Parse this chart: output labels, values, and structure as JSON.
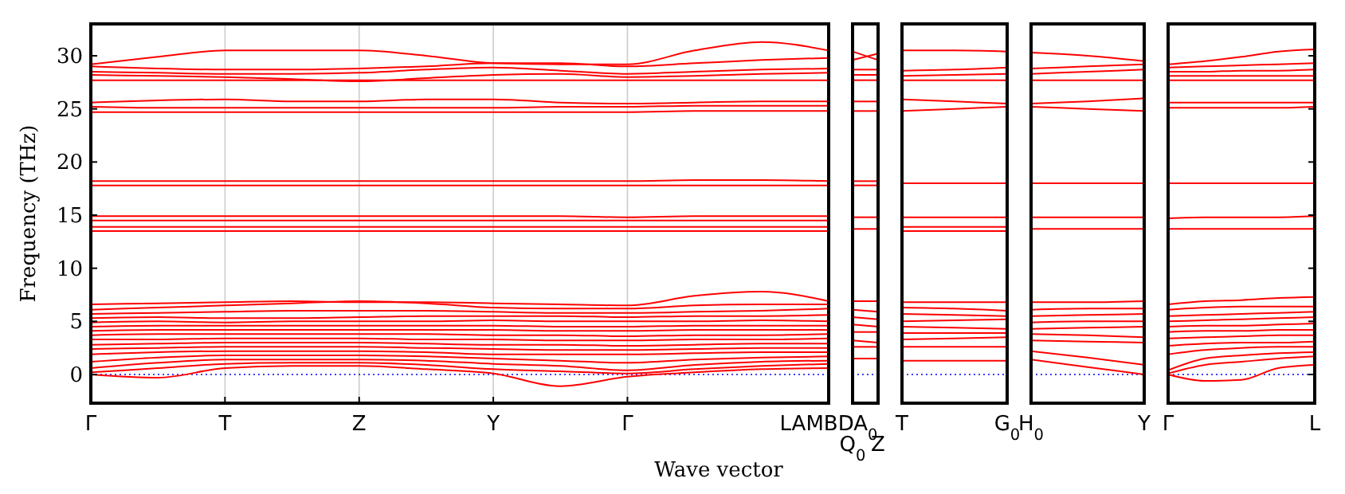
{
  "chart_data": [
    {
      "type": "line",
      "xlabel": "Wave vector",
      "ylabel": "Frequency (THz)",
      "ylim": [
        -2.7,
        33
      ],
      "yticks": [
        0,
        5,
        10,
        15,
        20,
        25,
        30
      ],
      "categories": [
        "Γ",
        null,
        "T",
        null,
        "Z",
        null,
        "Y",
        null,
        "Γ",
        null,
        null,
        "LAMBDA$_{0}$"
      ],
      "grid": "x",
      "ref_lines": [
        {
          "axis": "y",
          "value": 0,
          "color": "#0000ff",
          "line_style": "dotted"
        }
      ],
      "series": [
        {
          "color": "#ff0000",
          "values": [
            29.2,
            29.9,
            30.5,
            30.5,
            30.5,
            30.0,
            29.3,
            29.2,
            29.2,
            30.5,
            31.3,
            30.5
          ]
        },
        {
          "color": "#ff0000",
          "values": [
            29.0,
            28.8,
            28.7,
            28.7,
            28.8,
            29.0,
            29.3,
            29.3,
            29.0,
            29.3,
            29.6,
            29.8
          ]
        },
        {
          "color": "#ff0000",
          "values": [
            28.5,
            28.4,
            28.3,
            28.3,
            28.4,
            28.7,
            28.9,
            28.6,
            28.3,
            28.5,
            28.7,
            28.8
          ]
        },
        {
          "color": "#ff0000",
          "values": [
            28.2,
            28.1,
            28.0,
            27.8,
            27.6,
            27.9,
            28.2,
            28.3,
            28.0,
            28.1,
            28.3,
            28.4
          ]
        },
        {
          "color": "#ff0000",
          "values": [
            27.7,
            27.7,
            27.7,
            27.7,
            27.7,
            27.7,
            27.7,
            27.7,
            27.7,
            27.7,
            27.7,
            27.7
          ]
        },
        {
          "color": "#ff0000",
          "values": [
            25.6,
            25.8,
            25.9,
            25.7,
            25.7,
            25.9,
            25.9,
            25.6,
            25.5,
            25.6,
            25.7,
            25.7
          ]
        },
        {
          "color": "#ff0000",
          "values": [
            25.2,
            25.1,
            25.1,
            25.1,
            25.1,
            25.1,
            25.1,
            25.2,
            25.2,
            25.3,
            25.3,
            25.3
          ]
        },
        {
          "color": "#ff0000",
          "values": [
            24.7,
            24.7,
            24.7,
            24.7,
            24.7,
            24.7,
            24.7,
            24.7,
            24.7,
            24.8,
            24.8,
            24.8
          ]
        },
        {
          "color": "#ff0000",
          "values": [
            18.2,
            18.2,
            18.2,
            18.2,
            18.2,
            18.2,
            18.2,
            18.2,
            18.2,
            18.3,
            18.3,
            18.2
          ]
        },
        {
          "color": "#ff0000",
          "values": [
            17.8,
            17.8,
            17.8,
            17.8,
            17.8,
            17.8,
            17.8,
            17.8,
            17.8,
            17.8,
            17.8,
            17.8
          ]
        },
        {
          "color": "#ff0000",
          "values": [
            14.9,
            14.9,
            14.9,
            14.9,
            14.9,
            14.9,
            14.9,
            14.9,
            14.8,
            14.9,
            14.9,
            14.9
          ]
        },
        {
          "color": "#ff0000",
          "values": [
            14.5,
            14.5,
            14.5,
            14.5,
            14.5,
            14.5,
            14.5,
            14.5,
            14.5,
            14.5,
            14.5,
            14.5
          ]
        },
        {
          "color": "#ff0000",
          "values": [
            13.9,
            13.9,
            13.9,
            13.9,
            13.9,
            13.9,
            13.9,
            13.9,
            13.9,
            13.9,
            13.9,
            13.9
          ]
        },
        {
          "color": "#ff0000",
          "values": [
            13.5,
            13.5,
            13.5,
            13.5,
            13.5,
            13.5,
            13.5,
            13.5,
            13.5,
            13.5,
            13.5,
            13.5
          ]
        },
        {
          "color": "#ff0000",
          "values": [
            6.6,
            6.7,
            6.8,
            6.9,
            6.8,
            6.8,
            6.7,
            6.6,
            6.5,
            7.4,
            7.8,
            6.9
          ]
        },
        {
          "color": "#ff0000",
          "values": [
            6.1,
            6.3,
            6.5,
            6.7,
            6.9,
            6.7,
            6.3,
            6.2,
            6.2,
            6.5,
            6.6,
            6.6
          ]
        },
        {
          "color": "#ff0000",
          "values": [
            5.7,
            5.8,
            5.9,
            6.0,
            6.0,
            6.0,
            5.9,
            5.8,
            5.8,
            5.9,
            6.0,
            6.2
          ]
        },
        {
          "color": "#ff0000",
          "values": [
            5.3,
            5.4,
            5.3,
            5.3,
            5.4,
            5.5,
            5.5,
            5.5,
            5.4,
            5.5,
            5.5,
            5.6
          ]
        },
        {
          "color": "#ff0000",
          "values": [
            4.9,
            5.0,
            4.9,
            5.0,
            5.0,
            5.0,
            5.1,
            5.0,
            5.0,
            5.0,
            5.1,
            5.0
          ]
        },
        {
          "color": "#ff0000",
          "values": [
            4.5,
            4.6,
            4.6,
            4.6,
            4.6,
            4.6,
            4.6,
            4.5,
            4.5,
            4.6,
            4.6,
            4.6
          ]
        },
        {
          "color": "#ff0000",
          "values": [
            4.1,
            4.2,
            4.2,
            4.2,
            4.2,
            4.2,
            4.2,
            4.1,
            4.1,
            4.2,
            4.2,
            4.2
          ]
        },
        {
          "color": "#ff0000",
          "values": [
            3.7,
            3.8,
            3.8,
            3.8,
            3.8,
            3.8,
            3.7,
            3.7,
            3.6,
            3.7,
            3.7,
            3.8
          ]
        },
        {
          "color": "#ff0000",
          "values": [
            3.3,
            3.3,
            3.4,
            3.4,
            3.4,
            3.3,
            3.3,
            3.2,
            3.2,
            3.3,
            3.3,
            3.4
          ]
        },
        {
          "color": "#ff0000",
          "values": [
            2.8,
            2.9,
            3.0,
            3.0,
            3.0,
            2.9,
            2.8,
            2.8,
            2.7,
            2.8,
            2.9,
            2.9
          ]
        },
        {
          "color": "#ff0000",
          "values": [
            2.4,
            2.5,
            2.6,
            2.6,
            2.6,
            2.5,
            2.4,
            2.3,
            2.3,
            2.4,
            2.5,
            2.5
          ]
        },
        {
          "color": "#ff0000",
          "values": [
            1.9,
            2.1,
            2.2,
            2.2,
            2.2,
            2.1,
            1.9,
            1.9,
            1.9,
            2.0,
            2.1,
            2.1
          ]
        },
        {
          "color": "#ff0000",
          "values": [
            1.2,
            1.6,
            1.8,
            1.8,
            1.8,
            1.7,
            1.5,
            1.3,
            1.1,
            1.4,
            1.6,
            1.7
          ]
        },
        {
          "color": "#ff0000",
          "values": [
            0.6,
            1.1,
            1.4,
            1.4,
            1.4,
            1.3,
            1.0,
            0.8,
            0.4,
            0.9,
            1.2,
            1.3
          ]
        },
        {
          "color": "#ff0000",
          "values": [
            0.2,
            0.6,
            1.0,
            1.1,
            1.1,
            0.9,
            0.5,
            0.3,
            0.1,
            0.5,
            0.8,
            1.0
          ]
        },
        {
          "color": "#ff0000",
          "values": [
            0,
            -0.3,
            0.6,
            0.8,
            0.8,
            0.5,
            0.1,
            -1.1,
            -0.2,
            0.2,
            0.5,
            0.6
          ]
        }
      ]
    },
    {
      "type": "line",
      "ylim": [
        -2.7,
        33
      ],
      "yticks": [
        0,
        5,
        10,
        15,
        20,
        25,
        30
      ],
      "tick_labels": "x",
      "categories": [
        "Q$_{0}$",
        "Z"
      ],
      "ref_lines": [
        {
          "axis": "y",
          "value": 0,
          "color": "#0000ff",
          "line_style": "dotted"
        }
      ],
      "series": [
        {
          "color": "#ff0000",
          "values": [
            30.4,
            29.6
          ]
        },
        {
          "color": "#ff0000",
          "values": [
            29.6,
            30.2
          ]
        },
        {
          "color": "#ff0000",
          "values": [
            28.7,
            28.7
          ]
        },
        {
          "color": "#ff0000",
          "values": [
            28.2,
            28.2
          ]
        },
        {
          "color": "#ff0000",
          "values": [
            27.7,
            27.7
          ]
        },
        {
          "color": "#ff0000",
          "values": [
            25.7,
            25.7
          ]
        },
        {
          "color": "#ff0000",
          "values": [
            24.8,
            24.8
          ]
        },
        {
          "color": "#ff0000",
          "values": [
            18.2,
            18.2
          ]
        },
        {
          "color": "#ff0000",
          "values": [
            17.8,
            17.8
          ]
        },
        {
          "color": "#ff0000",
          "values": [
            14.8,
            14.8
          ]
        },
        {
          "color": "#ff0000",
          "values": [
            13.7,
            13.7
          ]
        },
        {
          "color": "#ff0000",
          "values": [
            6.9,
            6.9
          ]
        },
        {
          "color": "#ff0000",
          "values": [
            6.1,
            5.9
          ]
        },
        {
          "color": "#ff0000",
          "values": [
            5.4,
            5.2
          ]
        },
        {
          "color": "#ff0000",
          "values": [
            4.7,
            4.5
          ]
        },
        {
          "color": "#ff0000",
          "values": [
            4.0,
            4.0
          ]
        },
        {
          "color": "#ff0000",
          "values": [
            3.2,
            3.0
          ]
        },
        {
          "color": "#ff0000",
          "values": [
            2.6,
            2.6
          ]
        },
        {
          "color": "#ff0000",
          "values": [
            1.5,
            1.5
          ]
        }
      ]
    },
    {
      "type": "line",
      "ylim": [
        -2.7,
        33
      ],
      "yticks": [
        0,
        5,
        10,
        15,
        20,
        25,
        30
      ],
      "tick_labels": "x",
      "categories": [
        "T",
        null,
        "G$_{0}$"
      ],
      "ref_lines": [
        {
          "axis": "y",
          "value": 0,
          "color": "#0000ff",
          "line_style": "dotted"
        }
      ],
      "series": [
        {
          "color": "#ff0000",
          "values": [
            30.5,
            30.5,
            30.4
          ]
        },
        {
          "color": "#ff0000",
          "values": [
            28.6,
            28.7,
            28.9
          ]
        },
        {
          "color": "#ff0000",
          "values": [
            28.1,
            28.2,
            28.3
          ]
        },
        {
          "color": "#ff0000",
          "values": [
            27.7,
            27.7,
            27.7
          ]
        },
        {
          "color": "#ff0000",
          "values": [
            25.9,
            25.7,
            25.5
          ]
        },
        {
          "color": "#ff0000",
          "values": [
            24.8,
            25.0,
            25.2
          ]
        },
        {
          "color": "#ff0000",
          "values": [
            18.0,
            18.0,
            18.0
          ]
        },
        {
          "color": "#ff0000",
          "values": [
            14.8,
            14.8,
            14.8
          ]
        },
        {
          "color": "#ff0000",
          "values": [
            13.9,
            13.9,
            13.9
          ]
        },
        {
          "color": "#ff0000",
          "values": [
            13.5,
            13.5,
            13.5
          ]
        },
        {
          "color": "#ff0000",
          "values": [
            6.8,
            6.8,
            6.8
          ]
        },
        {
          "color": "#ff0000",
          "values": [
            6.3,
            6.2,
            6.0
          ]
        },
        {
          "color": "#ff0000",
          "values": [
            5.7,
            5.6,
            5.5
          ]
        },
        {
          "color": "#ff0000",
          "values": [
            5.0,
            5.1,
            5.2
          ]
        },
        {
          "color": "#ff0000",
          "values": [
            4.5,
            4.4,
            4.3
          ]
        },
        {
          "color": "#ff0000",
          "values": [
            3.9,
            3.9,
            3.9
          ]
        },
        {
          "color": "#ff0000",
          "values": [
            3.3,
            3.4,
            3.5
          ]
        },
        {
          "color": "#ff0000",
          "values": [
            2.6,
            2.6,
            2.6
          ]
        },
        {
          "color": "#ff0000",
          "values": [
            1.3,
            1.3,
            1.3
          ]
        }
      ]
    },
    {
      "type": "line",
      "ylim": [
        -2.7,
        33
      ],
      "yticks": [
        0,
        5,
        10,
        15,
        20,
        25,
        30
      ],
      "tick_labels": "x",
      "categories": [
        "H$_{0}$",
        null,
        "Y"
      ],
      "ref_lines": [
        {
          "axis": "y",
          "value": 0,
          "color": "#0000ff",
          "line_style": "dotted"
        }
      ],
      "series": [
        {
          "color": "#ff0000",
          "values": [
            30.3,
            30.0,
            29.5
          ]
        },
        {
          "color": "#ff0000",
          "values": [
            28.8,
            29.0,
            29.2
          ]
        },
        {
          "color": "#ff0000",
          "values": [
            28.3,
            28.5,
            28.7
          ]
        },
        {
          "color": "#ff0000",
          "values": [
            27.7,
            27.7,
            27.7
          ]
        },
        {
          "color": "#ff0000",
          "values": [
            25.5,
            25.7,
            26.0
          ]
        },
        {
          "color": "#ff0000",
          "values": [
            25.2,
            25.0,
            24.8
          ]
        },
        {
          "color": "#ff0000",
          "values": [
            18.0,
            18.0,
            18.0
          ]
        },
        {
          "color": "#ff0000",
          "values": [
            14.8,
            14.8,
            14.8
          ]
        },
        {
          "color": "#ff0000",
          "values": [
            13.7,
            13.7,
            13.7
          ]
        },
        {
          "color": "#ff0000",
          "values": [
            6.8,
            6.8,
            6.9
          ]
        },
        {
          "color": "#ff0000",
          "values": [
            6.1,
            6.2,
            6.2
          ]
        },
        {
          "color": "#ff0000",
          "values": [
            5.5,
            5.6,
            5.7
          ]
        },
        {
          "color": "#ff0000",
          "values": [
            4.9,
            5.0,
            5.0
          ]
        },
        {
          "color": "#ff0000",
          "values": [
            4.3,
            4.4,
            4.5
          ]
        },
        {
          "color": "#ff0000",
          "values": [
            3.8,
            3.7,
            3.5
          ]
        },
        {
          "color": "#ff0000",
          "values": [
            3.2,
            3.1,
            3.0
          ]
        },
        {
          "color": "#ff0000",
          "values": [
            2.2,
            1.6,
            0.9
          ]
        },
        {
          "color": "#ff0000",
          "values": [
            1.4,
            0.7,
            0
          ]
        }
      ]
    },
    {
      "type": "line",
      "ylim": [
        -2.7,
        33
      ],
      "yticks": [
        0,
        5,
        10,
        15,
        20,
        25,
        30
      ],
      "tick_labels": "x",
      "categories": [
        "Γ",
        null,
        null,
        null,
        "L"
      ],
      "ref_lines": [
        {
          "axis": "y",
          "value": 0,
          "color": "#0000ff",
          "line_style": "dotted"
        }
      ],
      "series": [
        {
          "color": "#ff0000",
          "values": [
            29.2,
            29.5,
            29.9,
            30.4,
            30.6
          ]
        },
        {
          "color": "#ff0000",
          "values": [
            28.9,
            29.0,
            29.1,
            29.2,
            29.3
          ]
        },
        {
          "color": "#ff0000",
          "values": [
            28.5,
            28.5,
            28.6,
            28.6,
            28.7
          ]
        },
        {
          "color": "#ff0000",
          "values": [
            28.1,
            28.1,
            28.1,
            28.1,
            28.1
          ]
        },
        {
          "color": "#ff0000",
          "values": [
            27.7,
            27.7,
            27.7,
            27.7,
            27.7
          ]
        },
        {
          "color": "#ff0000",
          "values": [
            25.6,
            25.6,
            25.6,
            25.6,
            25.6
          ]
        },
        {
          "color": "#ff0000",
          "values": [
            25.1,
            25.1,
            25.1,
            25.1,
            25.2
          ]
        },
        {
          "color": "#ff0000",
          "values": [
            18.0,
            18.0,
            18.0,
            18.0,
            18.0
          ]
        },
        {
          "color": "#ff0000",
          "values": [
            14.7,
            14.8,
            14.8,
            14.8,
            14.9
          ]
        },
        {
          "color": "#ff0000",
          "values": [
            13.7,
            13.7,
            13.7,
            13.7,
            13.7
          ]
        },
        {
          "color": "#ff0000",
          "values": [
            6.6,
            6.9,
            7.0,
            7.2,
            7.3
          ]
        },
        {
          "color": "#ff0000",
          "values": [
            6.1,
            6.3,
            6.4,
            6.4,
            6.4
          ]
        },
        {
          "color": "#ff0000",
          "values": [
            5.5,
            5.6,
            5.7,
            5.8,
            5.9
          ]
        },
        {
          "color": "#ff0000",
          "values": [
            5.0,
            5.1,
            5.2,
            5.3,
            5.4
          ]
        },
        {
          "color": "#ff0000",
          "values": [
            4.5,
            4.6,
            4.6,
            4.7,
            4.8
          ]
        },
        {
          "color": "#ff0000",
          "values": [
            4.0,
            4.1,
            4.1,
            4.2,
            4.2
          ]
        },
        {
          "color": "#ff0000",
          "values": [
            3.4,
            3.5,
            3.6,
            3.7,
            3.7
          ]
        },
        {
          "color": "#ff0000",
          "values": [
            2.7,
            2.9,
            3.0,
            3.0,
            3.1
          ]
        },
        {
          "color": "#ff0000",
          "values": [
            1.9,
            2.3,
            2.5,
            2.6,
            2.6
          ]
        },
        {
          "color": "#ff0000",
          "values": [
            0.4,
            1.5,
            1.8,
            2.0,
            2.1
          ]
        },
        {
          "color": "#ff0000",
          "values": [
            0.1,
            0.9,
            1.2,
            1.5,
            1.7
          ]
        },
        {
          "color": "#ff0000",
          "values": [
            0,
            -0.6,
            -0.5,
            0.6,
            0.9
          ]
        }
      ]
    }
  ]
}
